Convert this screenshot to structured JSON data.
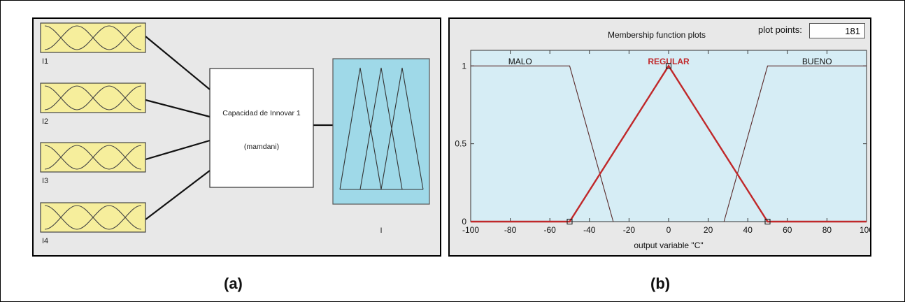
{
  "fis_editor": {
    "inputs": [
      {
        "label": "I1"
      },
      {
        "label": "I2"
      },
      {
        "label": "I3"
      },
      {
        "label": "I4"
      }
    ],
    "system": {
      "name": "Capacidad de Innovar 1",
      "type": "(mamdani)"
    },
    "output": {
      "label": "I"
    },
    "colors": {
      "input_fill": "#f6ee9c",
      "output_fill": "#9fd9e8",
      "panel_bg": "#e8e8e8"
    }
  },
  "mf_editor": {
    "title": "Membership function plots",
    "plot_points_label": "plot points:",
    "plot_points_value": "181",
    "colors": {
      "plot_bg": "#d6edf5",
      "selected": "#c0282a",
      "normal": "#5a2a2a"
    }
  },
  "chart_data": {
    "type": "line",
    "title": "Membership function plots",
    "xlabel": "output variable \"C\"",
    "ylabel": "",
    "xlim": [
      -100,
      100
    ],
    "ylim": [
      0,
      1.1
    ],
    "xticks": [
      -100,
      -80,
      -60,
      -40,
      -20,
      0,
      20,
      40,
      60,
      80,
      100
    ],
    "yticks": [
      0,
      0.5,
      1
    ],
    "yticklabels": [
      "0",
      "0.5",
      "1"
    ],
    "grid": false,
    "series": [
      {
        "name": "MALO",
        "selected": false,
        "x": [
          -100,
          -50,
          -28
        ],
        "y": [
          1,
          1,
          0
        ]
      },
      {
        "name": "REGULAR",
        "selected": true,
        "x": [
          -100,
          -50,
          0,
          50,
          100
        ],
        "y": [
          0,
          0,
          1,
          0,
          0
        ]
      },
      {
        "name": "BUENO",
        "selected": false,
        "x": [
          28,
          50,
          100
        ],
        "y": [
          0,
          1,
          1
        ]
      }
    ],
    "series_label_x": [
      -75,
      0,
      75
    ],
    "markers": [
      {
        "x": -50,
        "y": 0
      },
      {
        "x": 0,
        "y": 1
      },
      {
        "x": 50,
        "y": 0
      }
    ]
  },
  "captions": {
    "a": "(a)",
    "b": "(b)"
  }
}
